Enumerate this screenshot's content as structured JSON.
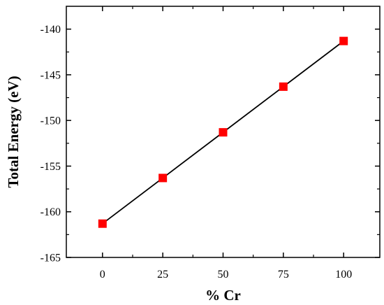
{
  "chart_data": {
    "type": "line",
    "title": "",
    "xlabel": "% Cr",
    "ylabel": "Total Energy (eV)",
    "x": [
      0,
      25,
      50,
      75,
      100
    ],
    "series": [
      {
        "values": [
          -161.3,
          -156.3,
          -151.3,
          -146.3,
          -141.3
        ]
      }
    ],
    "xlim": [
      -15,
      115
    ],
    "ylim": [
      -165,
      -137.5
    ],
    "xticks": [
      0,
      25,
      50,
      75,
      100
    ],
    "yticks": [
      -165,
      -160,
      -155,
      -150,
      -145,
      -140
    ],
    "xtick_labels": [
      "0",
      "25",
      "50",
      "75",
      "100"
    ],
    "ytick_labels": [
      "-165",
      "-160",
      "-155",
      "-150",
      "-145",
      "-140"
    ],
    "grid": false,
    "line_color": "#000000",
    "marker_color": "#ff0000",
    "marker": "square"
  }
}
